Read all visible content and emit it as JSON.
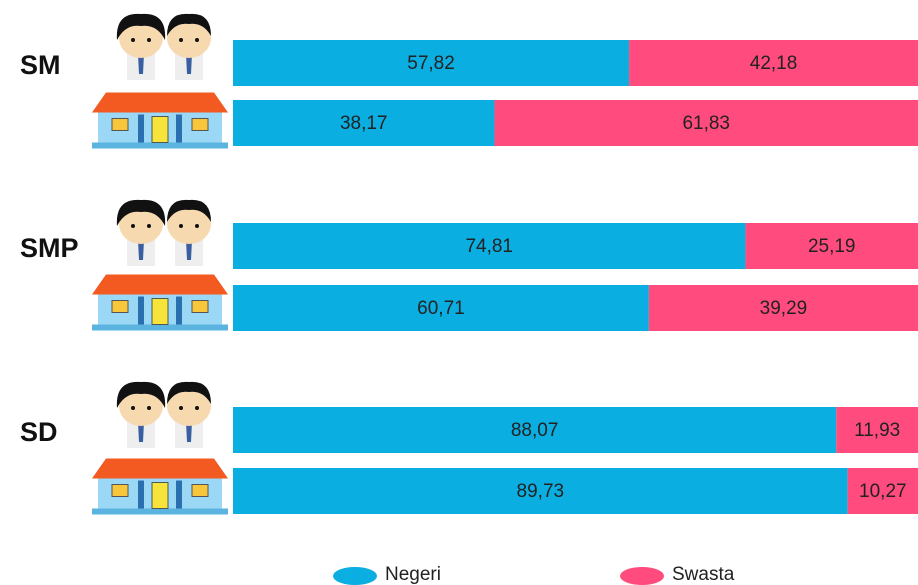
{
  "chart_data": {
    "type": "stacked-barh",
    "categories": [
      "SM",
      null,
      "SMP",
      null,
      "SD",
      null
    ],
    "series": [
      {
        "name": "Negeri",
        "color": "#0aaee0",
        "values": [
          57.82,
          38.17,
          74.81,
          60.71,
          88.07,
          89.73
        ],
        "value_labels": [
          "57,82",
          "38,17",
          "74,81",
          "60,71",
          "88,07",
          "89,73"
        ]
      },
      {
        "name": "Swasta",
        "color": "#ff4b7d",
        "values": [
          42.18,
          61.83,
          25.19,
          39.29,
          11.93,
          10.27
        ],
        "value_labels": [
          "42,18",
          "61,83",
          "25,19",
          "39,29",
          "11,93",
          "10,27"
        ]
      }
    ],
    "xlim": [
      0,
      100
    ],
    "legend": "bottom"
  }
}
